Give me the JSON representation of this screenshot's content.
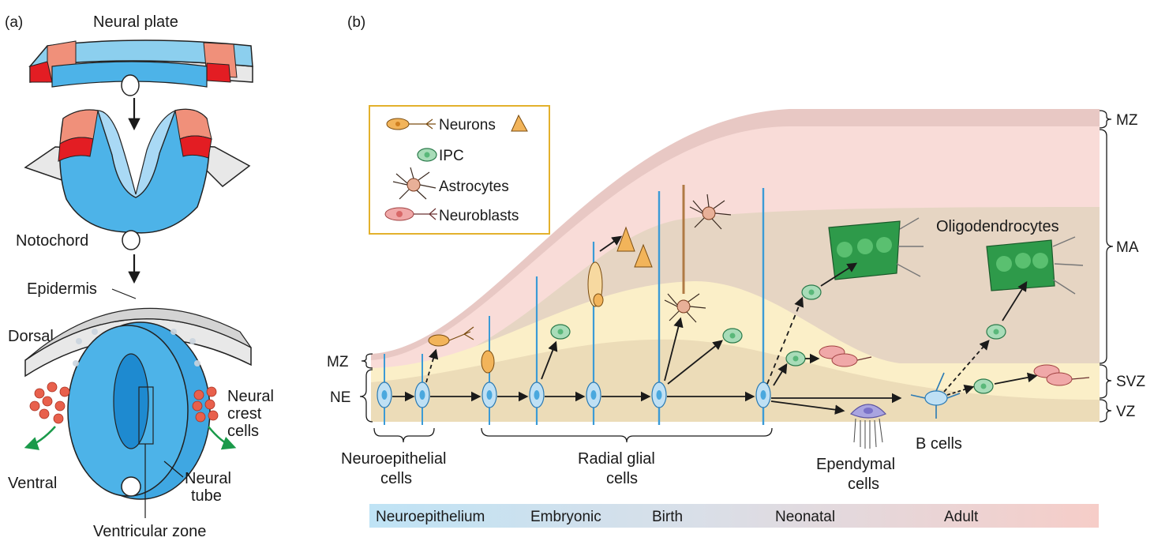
{
  "panel_a": {
    "tag": "(a)",
    "neural_plate": "Neural plate",
    "notochord": "Notochord",
    "epidermis": "Epidermis",
    "dorsal": "Dorsal",
    "ventral": "Ventral",
    "neural_crest_1": "Neural",
    "neural_crest_2": "crest",
    "neural_crest_3": "cells",
    "neural_tube_1": "Neural",
    "neural_tube_2": "tube",
    "ventricular_zone": "Ventricular zone"
  },
  "panel_b": {
    "tag": "(b)",
    "legend": {
      "neurons": "Neurons",
      "ipc": "IPC",
      "astrocytes": "Astrocytes",
      "neuroblasts": "Neuroblasts"
    },
    "zones_right": {
      "mz": "MZ",
      "ma": "MA",
      "svz": "SVZ",
      "vz": "VZ"
    },
    "zones_left": {
      "mz": "MZ",
      "ne": "NE"
    },
    "oligodendrocytes": "Oligodendrocytes",
    "ependymal_1": "Ependymal",
    "ependymal_2": "cells",
    "b_cells": "B cells",
    "neuroepithelial_1": "Neuroepithelial",
    "neuroepithelial_2": "cells",
    "radial_glial_1": "Radial glial",
    "radial_glial_2": "cells",
    "timeline": {
      "neuroepithelium": "Neuroepithelium",
      "embryonic": "Embryonic",
      "birth": "Birth",
      "neonatal": "Neonatal",
      "adult": "Adult"
    }
  },
  "colors": {
    "tube_blue": "#4db3e8",
    "tube_light": "#a9d9f5",
    "crest_red": "#e31d23",
    "crest_salmon": "#f0907a",
    "mz_band": "#e8c8c4",
    "ma_pink": "#f9dcd8",
    "tan_region": "#e6d5c3",
    "svz_yellow": "#fbefc8",
    "vz_tan": "#ecdcb8",
    "neuron_orange": "#f2b45a",
    "ipc_green": "#a8dcb8",
    "oligo_green": "#2e9a4a"
  }
}
